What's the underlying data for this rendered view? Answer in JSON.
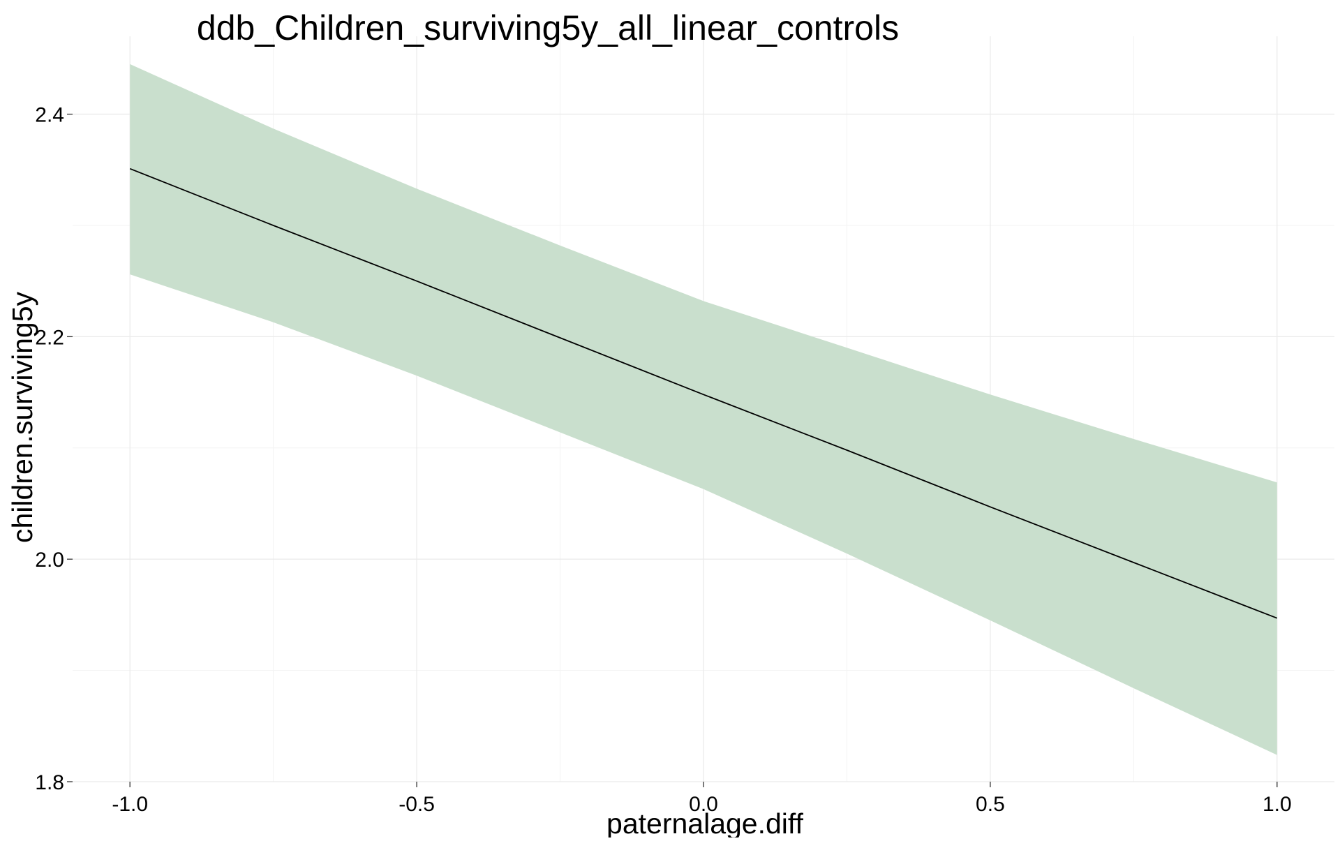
{
  "chart_data": {
    "type": "line",
    "title": "ddb_Children_surviving5y_all_linear_controls",
    "xlabel": "paternalage.diff",
    "ylabel": "children.surviving5y",
    "xlim": [
      -1.1,
      1.1
    ],
    "ylim": [
      1.8,
      2.47
    ],
    "x_ticks": [
      -1.0,
      -0.5,
      0.0,
      0.5,
      1.0
    ],
    "x_tick_labels": [
      "-1.0",
      "-0.5",
      "0.0",
      "0.5",
      "1.0"
    ],
    "y_ticks": [
      1.8,
      2.0,
      2.2,
      2.4
    ],
    "y_tick_labels": [
      "1.8",
      "2.0",
      "2.2",
      "2.4"
    ],
    "x_minor_ticks": [
      -0.75,
      -0.25,
      0.25,
      0.75
    ],
    "y_minor_ticks": [
      1.9,
      2.1,
      2.3
    ],
    "grid": true,
    "legend": "none",
    "band_color": "#c9dfcd",
    "line_color": "#000000",
    "series": [
      {
        "type": "line",
        "x": [
          -1.0,
          -0.75,
          -0.5,
          -0.25,
          0.0,
          0.25,
          0.5,
          0.75,
          1.0
        ],
        "values": [
          2.351,
          2.3,
          2.25,
          2.199,
          2.148,
          2.098,
          2.047,
          1.997,
          1.947
        ]
      },
      {
        "type": "band",
        "x": [
          -1.0,
          -0.75,
          -0.5,
          -0.25,
          0.0,
          0.25,
          0.5,
          0.75,
          1.0
        ],
        "lower": [
          2.256,
          2.213,
          2.165,
          2.114,
          2.063,
          2.005,
          1.945,
          1.884,
          1.824
        ],
        "upper": [
          2.445,
          2.387,
          2.333,
          2.282,
          2.232,
          2.19,
          2.148,
          2.108,
          2.069
        ]
      }
    ]
  }
}
